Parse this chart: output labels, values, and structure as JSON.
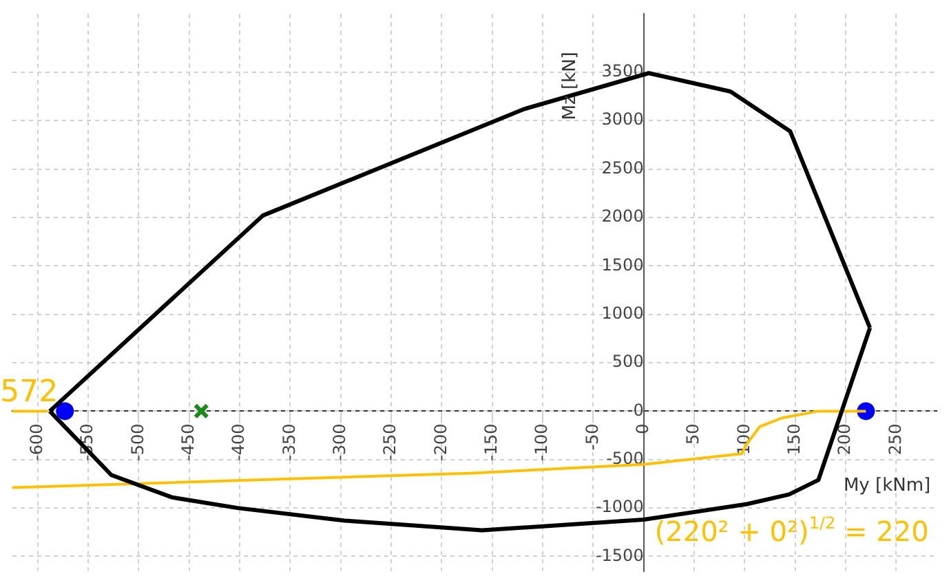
{
  "chart_data": {
    "type": "line",
    "xlabel": "My [kNm]",
    "ylabel": "Mz [kN]",
    "xlim": [
      -625,
      290
    ],
    "ylim": [
      -1650,
      4100
    ],
    "xticks": [
      -600,
      -550,
      -500,
      -450,
      -400,
      -350,
      -300,
      -250,
      -200,
      -150,
      -100,
      -50,
      0,
      50,
      100,
      150,
      200,
      250
    ],
    "yticks": [
      -1500,
      -1000,
      -500,
      0,
      500,
      1000,
      1500,
      2000,
      2500,
      3000,
      3500
    ],
    "grid": true,
    "legend": false,
    "series": [
      {
        "type": "line",
        "color": "#000000",
        "marker": "none",
        "x": [
          -588,
          -377,
          -118,
          5,
          86,
          145,
          224
        ],
        "values": [
          0,
          2020,
          3120,
          3490,
          3300,
          2890,
          860
        ]
      },
      {
        "type": "line",
        "color": "#000000",
        "marker": "none",
        "x": [
          -588,
          -527,
          -467,
          -402,
          -296,
          -160,
          0,
          102,
          144,
          173,
          224
        ],
        "values": [
          0,
          -660,
          -890,
          -1000,
          -1130,
          -1230,
          -1120,
          -960,
          -860,
          -710,
          860
        ]
      },
      {
        "type": "line",
        "color": "#ffc000",
        "marker": "none",
        "x": [
          -625,
          -590
        ],
        "values": [
          0,
          0
        ]
      },
      {
        "type": "line",
        "color": "#ffc000",
        "marker": "none",
        "x": [
          -625,
          -170,
          0,
          97,
          102,
          115,
          137,
          173,
          220
        ],
        "values": [
          -790,
          -640,
          -550,
          -440,
          -340,
          -160,
          -70,
          0,
          0
        ]
      },
      {
        "type": "scatter",
        "color": "#0000ff",
        "marker": "circle",
        "x": [
          -573,
          220
        ],
        "values": [
          0,
          0
        ]
      },
      {
        "type": "scatter",
        "color": "#1a8a1a",
        "marker": "cross",
        "x": [
          -438
        ],
        "values": [
          0
        ]
      }
    ],
    "annotations": [
      {
        "text": "572",
        "x": -573,
        "y": 0
      },
      "(220² + 0²)$^{1/2}$ = 220"
    ]
  }
}
